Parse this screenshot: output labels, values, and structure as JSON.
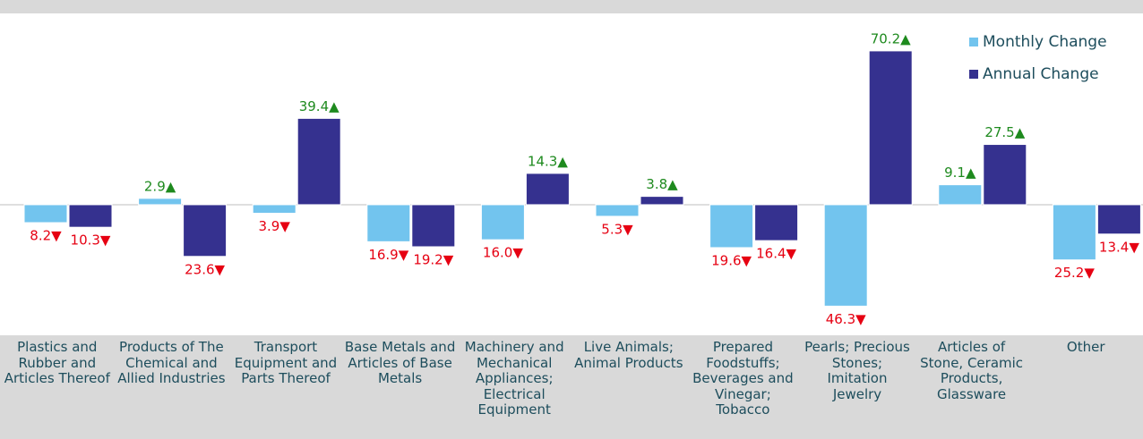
{
  "chart_data": {
    "type": "bar",
    "categories": [
      "Plastics and Rubber and Articles Thereof",
      "Products of The Chemical and Allied Industries",
      "Transport Equipment and Parts Thereof",
      "Base Metals and Articles of Base Metals",
      "Machinery and Mechanical Appliances; Electrical Equipment",
      "Live Animals; Animal Products",
      "Prepared Foodstuffs; Beverages and Vinegar; Tobacco",
      "Pearls; Precious Stones; Imitation Jewelry",
      "Articles of Stone, Ceramic Products, Glassware",
      "Other"
    ],
    "series": [
      {
        "name": "Monthly Change",
        "color": "#72c4ee",
        "values": [
          -8.2,
          2.9,
          -3.9,
          -16.9,
          -16.0,
          -5.3,
          -19.6,
          -46.3,
          9.1,
          -25.2
        ],
        "value_labels": [
          "8.2▼",
          "2.9▲",
          "3.9▼",
          "16.9▼",
          "16.0▼",
          "5.3▼",
          "19.6▼",
          "46.3▼",
          "9.1▲",
          "25.2▼"
        ]
      },
      {
        "name": "Annual Change",
        "color": "#35318f",
        "values": [
          -10.3,
          -23.6,
          39.4,
          -19.2,
          14.3,
          3.8,
          -16.4,
          70.2,
          27.5,
          -13.4
        ],
        "value_labels": [
          "10.3▼",
          "23.6▼",
          "39.4▲",
          "19.2▼",
          "14.3▲",
          "3.8▲",
          "16.4▼",
          "70.2▲",
          "27.5▲",
          "13.4▼"
        ]
      }
    ],
    "ylim": [
      -59.6,
      87.3
    ],
    "legend": "upper right",
    "positive_color": "#1e8a1e",
    "negative_color": "#e60012"
  }
}
